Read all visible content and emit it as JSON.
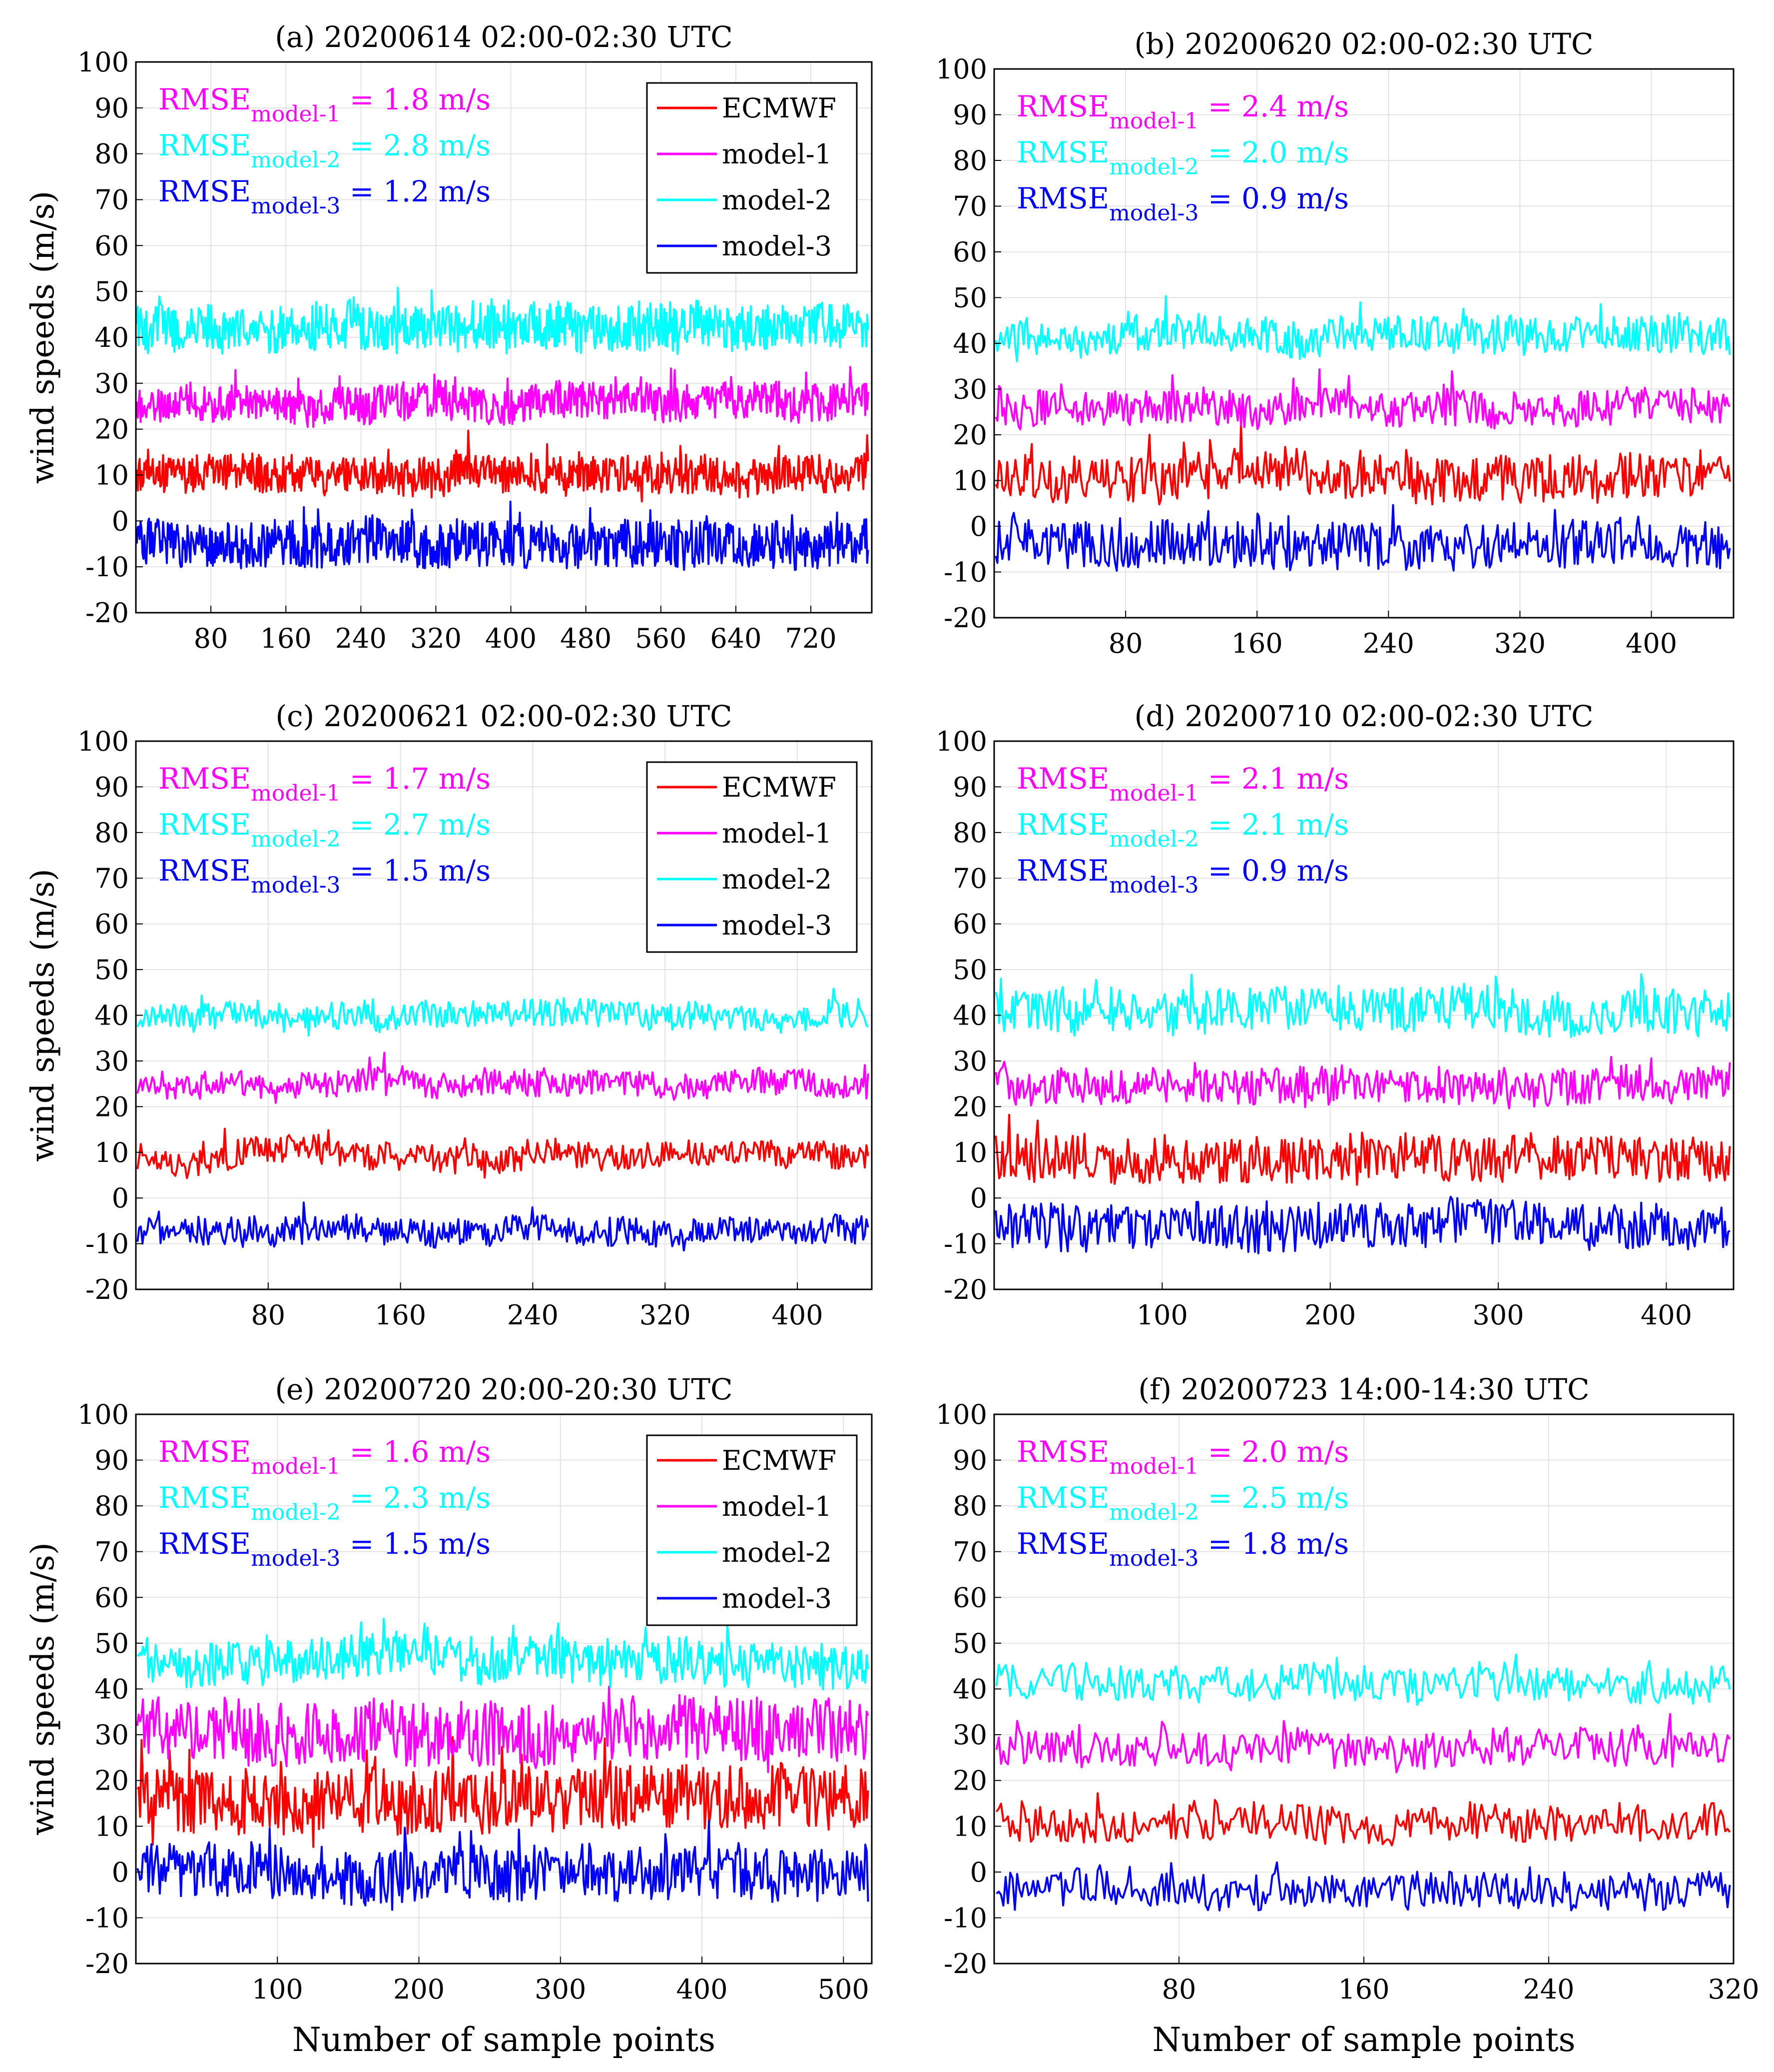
{
  "colors": {
    "ECMWF": "#ff0000",
    "model-1": "#ff00ff",
    "model-2": "#00ffff",
    "model-3": "#0000ff"
  },
  "shared": {
    "ylabel": "wind speeds (m/s)",
    "xlabel": "Number of sample points",
    "rmse_prefix": "RMSE",
    "rmse_subscripts": [
      "model-1",
      "model-2",
      "model-3"
    ],
    "rmse_unit": "m/s",
    "legend": [
      "ECMWF",
      "model-1",
      "model-2",
      "model-3"
    ]
  },
  "chart_data": [
    {
      "id": "a",
      "type": "line",
      "title": "(a) 20200614 02:00-02:30 UTC",
      "ylabel": "wind speeds (m/s)",
      "xlabel": "",
      "xlim": [
        0,
        785
      ],
      "ylim": [
        -20,
        100
      ],
      "xticks": [
        80,
        160,
        240,
        320,
        400,
        480,
        560,
        640,
        720
      ],
      "yticks": [
        -20,
        -10,
        0,
        10,
        20,
        30,
        40,
        50,
        60,
        70,
        80,
        90,
        100
      ],
      "n": 780,
      "show_legend": true,
      "rmse": [
        "1.8",
        "2.8",
        "1.2"
      ],
      "series": [
        {
          "name": "ECMWF",
          "base": 10,
          "amp": 4,
          "seed": 11
        },
        {
          "name": "model-1",
          "base": 26,
          "amp": 4,
          "seed": 12
        },
        {
          "name": "model-2",
          "base": 42,
          "amp": 5,
          "seed": 13
        },
        {
          "name": "model-3",
          "base": -5,
          "amp": 5,
          "seed": 14
        }
      ]
    },
    {
      "id": "b",
      "type": "line",
      "title": "(b) 20200620 02:00-02:30 UTC",
      "ylabel": "",
      "xlabel": "",
      "xlim": [
        0,
        450
      ],
      "ylim": [
        -20,
        100
      ],
      "xticks": [
        80,
        160,
        240,
        320,
        400
      ],
      "yticks": [
        -20,
        -10,
        0,
        10,
        20,
        30,
        40,
        50,
        60,
        70,
        80,
        90,
        100
      ],
      "n": 450,
      "show_legend": false,
      "rmse": [
        "2.4",
        "2.0",
        "0.9"
      ],
      "series": [
        {
          "name": "ECMWF",
          "base": 11,
          "amp": 5,
          "seed": 21
        },
        {
          "name": "model-1",
          "base": 26,
          "amp": 4,
          "seed": 22
        },
        {
          "name": "model-2",
          "base": 42,
          "amp": 4,
          "seed": 23
        },
        {
          "name": "model-3",
          "base": -4,
          "amp": 5,
          "seed": 24
        }
      ]
    },
    {
      "id": "c",
      "type": "line",
      "title": "(c) 20200621 02:00-02:30 UTC",
      "ylabel": "wind speeds (m/s)",
      "xlabel": "",
      "xlim": [
        0,
        445
      ],
      "ylim": [
        -20,
        100
      ],
      "xticks": [
        80,
        160,
        240,
        320,
        400
      ],
      "yticks": [
        -20,
        -10,
        0,
        10,
        20,
        30,
        40,
        50,
        60,
        70,
        80,
        90,
        100
      ],
      "n": 445,
      "show_legend": true,
      "rmse": [
        "1.7",
        "2.7",
        "1.5"
      ],
      "series": [
        {
          "name": "ECMWF",
          "base": 9,
          "amp": 3,
          "seed": 31
        },
        {
          "name": "model-1",
          "base": 25,
          "amp": 3,
          "seed": 32
        },
        {
          "name": "model-2",
          "base": 40,
          "amp": 3,
          "seed": 33
        },
        {
          "name": "model-3",
          "base": -7,
          "amp": 3,
          "seed": 34
        }
      ]
    },
    {
      "id": "d",
      "type": "line",
      "title": "(d) 20200710 02:00-02:30 UTC",
      "ylabel": "",
      "xlabel": "",
      "xlim": [
        0,
        440
      ],
      "ylim": [
        -20,
        100
      ],
      "xticks": [
        100,
        200,
        300,
        400
      ],
      "yticks": [
        -20,
        -10,
        0,
        10,
        20,
        30,
        40,
        50,
        60,
        70,
        80,
        90,
        100
      ],
      "n": 440,
      "show_legend": false,
      "rmse": [
        "2.1",
        "2.1",
        "0.9"
      ],
      "series": [
        {
          "name": "ECMWF",
          "base": 9,
          "amp": 5,
          "seed": 41
        },
        {
          "name": "model-1",
          "base": 25,
          "amp": 4,
          "seed": 42
        },
        {
          "name": "model-2",
          "base": 41,
          "amp": 5,
          "seed": 43
        },
        {
          "name": "model-3",
          "base": -6,
          "amp": 5,
          "seed": 44
        }
      ]
    },
    {
      "id": "e",
      "type": "line",
      "title": "(e) 20200720 20:00-20:30 UTC",
      "ylabel": "wind speeds (m/s)",
      "xlabel": "Number of sample points",
      "xlim": [
        0,
        520
      ],
      "ylim": [
        -20,
        100
      ],
      "xticks": [
        100,
        200,
        300,
        400,
        500
      ],
      "yticks": [
        -20,
        -10,
        0,
        10,
        20,
        30,
        40,
        50,
        60,
        70,
        80,
        90,
        100
      ],
      "n": 520,
      "show_legend": true,
      "rmse": [
        "1.6",
        "2.3",
        "1.5"
      ],
      "series": [
        {
          "name": "ECMWF",
          "base": 16,
          "amp": 7,
          "seed": 51
        },
        {
          "name": "model-1",
          "base": 31,
          "amp": 7,
          "seed": 52
        },
        {
          "name": "model-2",
          "base": 46,
          "amp": 5,
          "seed": 53
        },
        {
          "name": "model-3",
          "base": 0,
          "amp": 6,
          "seed": 54
        }
      ]
    },
    {
      "id": "f",
      "type": "line",
      "title": "(f) 20200723 14:00-14:30 UTC",
      "ylabel": "",
      "xlabel": "Number of sample points",
      "xlim": [
        0,
        320
      ],
      "ylim": [
        -20,
        100
      ],
      "xticks": [
        80,
        160,
        240,
        320
      ],
      "yticks": [
        -20,
        -10,
        0,
        10,
        20,
        30,
        40,
        50,
        60,
        70,
        80,
        90,
        100
      ],
      "n": 320,
      "show_legend": false,
      "rmse": [
        "2.0",
        "2.5",
        "1.8"
      ],
      "series": [
        {
          "name": "ECMWF",
          "base": 11,
          "amp": 4,
          "seed": 61
        },
        {
          "name": "model-1",
          "base": 27,
          "amp": 4,
          "seed": 62
        },
        {
          "name": "model-2",
          "base": 42,
          "amp": 4,
          "seed": 63
        },
        {
          "name": "model-3",
          "base": -4,
          "amp": 4,
          "seed": 64
        }
      ]
    }
  ]
}
